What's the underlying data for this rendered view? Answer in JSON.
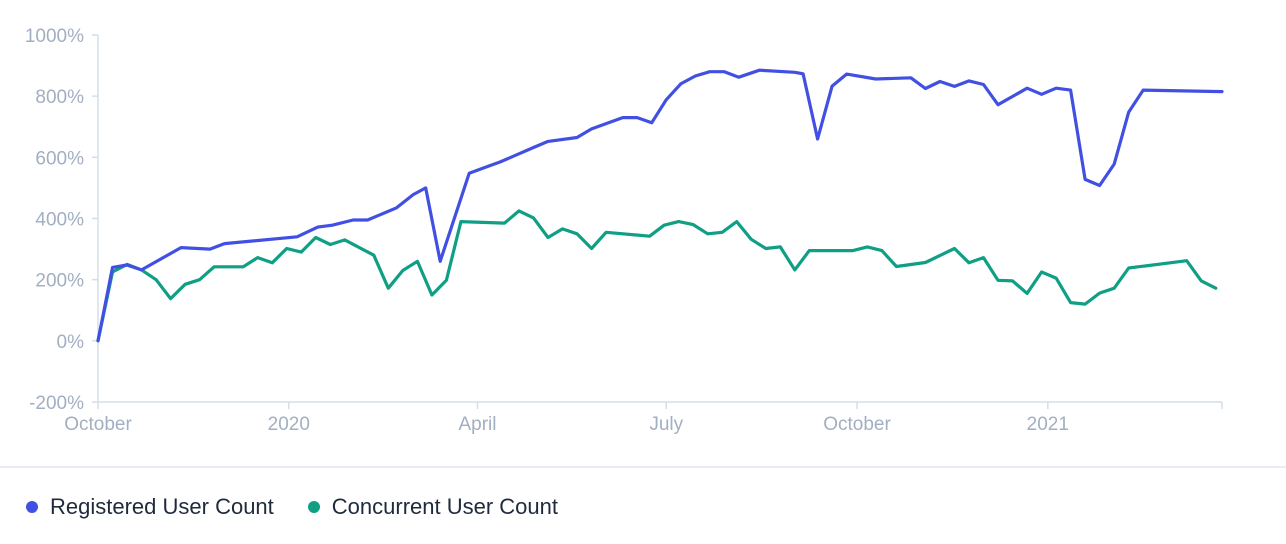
{
  "colors": {
    "registered": "#4150e3",
    "concurrent": "#0f9f85",
    "axis": "#d6dde8",
    "tick_text": "#a2afc2"
  },
  "legend": {
    "registered_label": "Registered User Count",
    "concurrent_label": "Concurrent User Count"
  },
  "chart_data": {
    "type": "line",
    "x_type": "date",
    "xlim": [
      "2019-10-01",
      "2021-03-26"
    ],
    "ylim": [
      -200,
      1000
    ],
    "y_ticks": [
      {
        "value": -200,
        "label": "-200%"
      },
      {
        "value": 0,
        "label": "0%"
      },
      {
        "value": 200,
        "label": "200%"
      },
      {
        "value": 400,
        "label": "400%"
      },
      {
        "value": 600,
        "label": "600%"
      },
      {
        "value": 800,
        "label": "800%"
      },
      {
        "value": 1000,
        "label": "1000%"
      }
    ],
    "x_ticks": [
      {
        "value": "2019-10-01",
        "label": "October"
      },
      {
        "value": "2020-01-01",
        "label": "2020"
      },
      {
        "value": "2020-04-01",
        "label": "April"
      },
      {
        "value": "2020-07-01",
        "label": "July"
      },
      {
        "value": "2020-10-01",
        "label": "October"
      },
      {
        "value": "2021-01-01",
        "label": "2021"
      }
    ],
    "grid": false,
    "legend_position": "bottom-left",
    "series": [
      {
        "name": "Registered User Count",
        "color": "#4150e3",
        "points": [
          [
            "2019-10-01",
            0
          ],
          [
            "2019-10-08",
            240
          ],
          [
            "2019-10-15",
            248
          ],
          [
            "2019-10-22",
            232
          ],
          [
            "2019-11-10",
            305
          ],
          [
            "2019-11-24",
            300
          ],
          [
            "2019-12-01",
            318
          ],
          [
            "2020-01-05",
            340
          ],
          [
            "2020-01-15",
            372
          ],
          [
            "2020-01-22",
            378
          ],
          [
            "2020-02-01",
            395
          ],
          [
            "2020-02-08",
            395
          ],
          [
            "2020-02-22",
            435
          ],
          [
            "2020-03-01",
            478
          ],
          [
            "2020-03-07",
            500
          ],
          [
            "2020-03-14",
            260
          ],
          [
            "2020-03-28",
            548
          ],
          [
            "2020-04-05",
            568
          ],
          [
            "2020-04-12",
            585
          ],
          [
            "2020-04-28",
            632
          ],
          [
            "2020-05-05",
            652
          ],
          [
            "2020-05-19",
            665
          ],
          [
            "2020-05-26",
            693
          ],
          [
            "2020-06-10",
            730
          ],
          [
            "2020-06-17",
            730
          ],
          [
            "2020-06-24",
            713
          ],
          [
            "2020-07-01",
            788
          ],
          [
            "2020-07-08",
            840
          ],
          [
            "2020-07-15",
            866
          ],
          [
            "2020-07-22",
            880
          ],
          [
            "2020-07-29",
            880
          ],
          [
            "2020-08-05",
            862
          ],
          [
            "2020-08-15",
            885
          ],
          [
            "2020-09-01",
            878
          ],
          [
            "2020-09-05",
            873
          ],
          [
            "2020-09-12",
            660
          ],
          [
            "2020-09-19",
            833
          ],
          [
            "2020-09-26",
            872
          ],
          [
            "2020-10-10",
            856
          ],
          [
            "2020-10-27",
            860
          ],
          [
            "2020-11-03",
            825
          ],
          [
            "2020-11-10",
            848
          ],
          [
            "2020-11-17",
            832
          ],
          [
            "2020-11-24",
            850
          ],
          [
            "2020-12-01",
            838
          ],
          [
            "2020-12-08",
            772
          ],
          [
            "2020-12-22",
            826
          ],
          [
            "2020-12-29",
            806
          ],
          [
            "2021-01-05",
            826
          ],
          [
            "2021-01-12",
            820
          ],
          [
            "2021-01-19",
            528
          ],
          [
            "2021-01-26",
            508
          ],
          [
            "2021-02-02",
            578
          ],
          [
            "2021-02-09",
            748
          ],
          [
            "2021-02-16",
            820
          ],
          [
            "2021-03-26",
            815
          ]
        ]
      },
      {
        "name": "Concurrent User Count",
        "color": "#0f9f85",
        "points": [
          [
            "2019-10-01",
            0
          ],
          [
            "2019-10-08",
            225
          ],
          [
            "2019-10-15",
            250
          ],
          [
            "2019-10-22",
            232
          ],
          [
            "2019-10-29",
            200
          ],
          [
            "2019-11-05",
            138
          ],
          [
            "2019-11-12",
            185
          ],
          [
            "2019-11-19",
            200
          ],
          [
            "2019-11-26",
            242
          ],
          [
            "2019-12-10",
            242
          ],
          [
            "2019-12-17",
            272
          ],
          [
            "2019-12-24",
            255
          ],
          [
            "2019-12-31",
            302
          ],
          [
            "2020-01-07",
            290
          ],
          [
            "2020-01-14",
            338
          ],
          [
            "2020-01-21",
            315
          ],
          [
            "2020-01-28",
            330
          ],
          [
            "2020-02-11",
            280
          ],
          [
            "2020-02-18",
            172
          ],
          [
            "2020-02-25",
            230
          ],
          [
            "2020-03-03",
            260
          ],
          [
            "2020-03-10",
            150
          ],
          [
            "2020-03-17",
            198
          ],
          [
            "2020-03-24",
            390
          ],
          [
            "2020-04-14",
            385
          ],
          [
            "2020-04-21",
            425
          ],
          [
            "2020-04-28",
            402
          ],
          [
            "2020-05-05",
            338
          ],
          [
            "2020-05-12",
            366
          ],
          [
            "2020-05-19",
            350
          ],
          [
            "2020-05-26",
            302
          ],
          [
            "2020-06-02",
            355
          ],
          [
            "2020-06-23",
            342
          ],
          [
            "2020-06-30",
            378
          ],
          [
            "2020-07-07",
            390
          ],
          [
            "2020-07-14",
            380
          ],
          [
            "2020-07-21",
            350
          ],
          [
            "2020-07-28",
            355
          ],
          [
            "2020-08-04",
            390
          ],
          [
            "2020-08-11",
            332
          ],
          [
            "2020-08-18",
            302
          ],
          [
            "2020-08-25",
            307
          ],
          [
            "2020-09-01",
            232
          ],
          [
            "2020-09-08",
            295
          ],
          [
            "2020-09-29",
            295
          ],
          [
            "2020-10-06",
            307
          ],
          [
            "2020-10-13",
            295
          ],
          [
            "2020-10-20",
            243
          ],
          [
            "2020-11-03",
            256
          ],
          [
            "2020-11-17",
            302
          ],
          [
            "2020-11-24",
            255
          ],
          [
            "2020-12-01",
            272
          ],
          [
            "2020-12-08",
            198
          ],
          [
            "2020-12-15",
            196
          ],
          [
            "2020-12-22",
            155
          ],
          [
            "2020-12-29",
            225
          ],
          [
            "2021-01-05",
            205
          ],
          [
            "2021-01-12",
            125
          ],
          [
            "2021-01-19",
            120
          ],
          [
            "2021-01-26",
            156
          ],
          [
            "2021-02-02",
            172
          ],
          [
            "2021-02-09",
            238
          ],
          [
            "2021-03-09",
            262
          ],
          [
            "2021-03-16",
            196
          ],
          [
            "2021-03-23",
            172
          ]
        ]
      }
    ]
  }
}
